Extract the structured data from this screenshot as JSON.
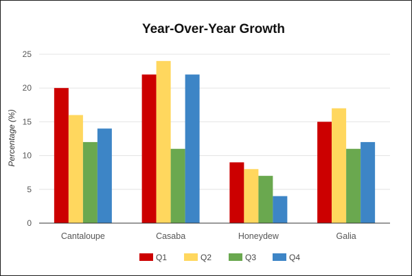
{
  "chart_data": {
    "type": "bar",
    "title": "Year-Over-Year Growth",
    "xlabel": "",
    "ylabel": "Percentage (%)",
    "ylim": [
      0,
      25
    ],
    "yticks": [
      0,
      5,
      10,
      15,
      20,
      25
    ],
    "categories": [
      "Cantaloupe",
      "Casaba",
      "Honeydew",
      "Galia"
    ],
    "series": [
      {
        "name": "Q1",
        "color": "#cc0000",
        "values": [
          20,
          22,
          9,
          15
        ]
      },
      {
        "name": "Q2",
        "color": "#ffd75e",
        "values": [
          16,
          24,
          8,
          17
        ]
      },
      {
        "name": "Q3",
        "color": "#6aa84f",
        "values": [
          12,
          11,
          7,
          11
        ]
      },
      {
        "name": "Q4",
        "color": "#3d85c6",
        "values": [
          14,
          22,
          4,
          12
        ]
      }
    ],
    "grid": true,
    "legend": "bottom"
  }
}
